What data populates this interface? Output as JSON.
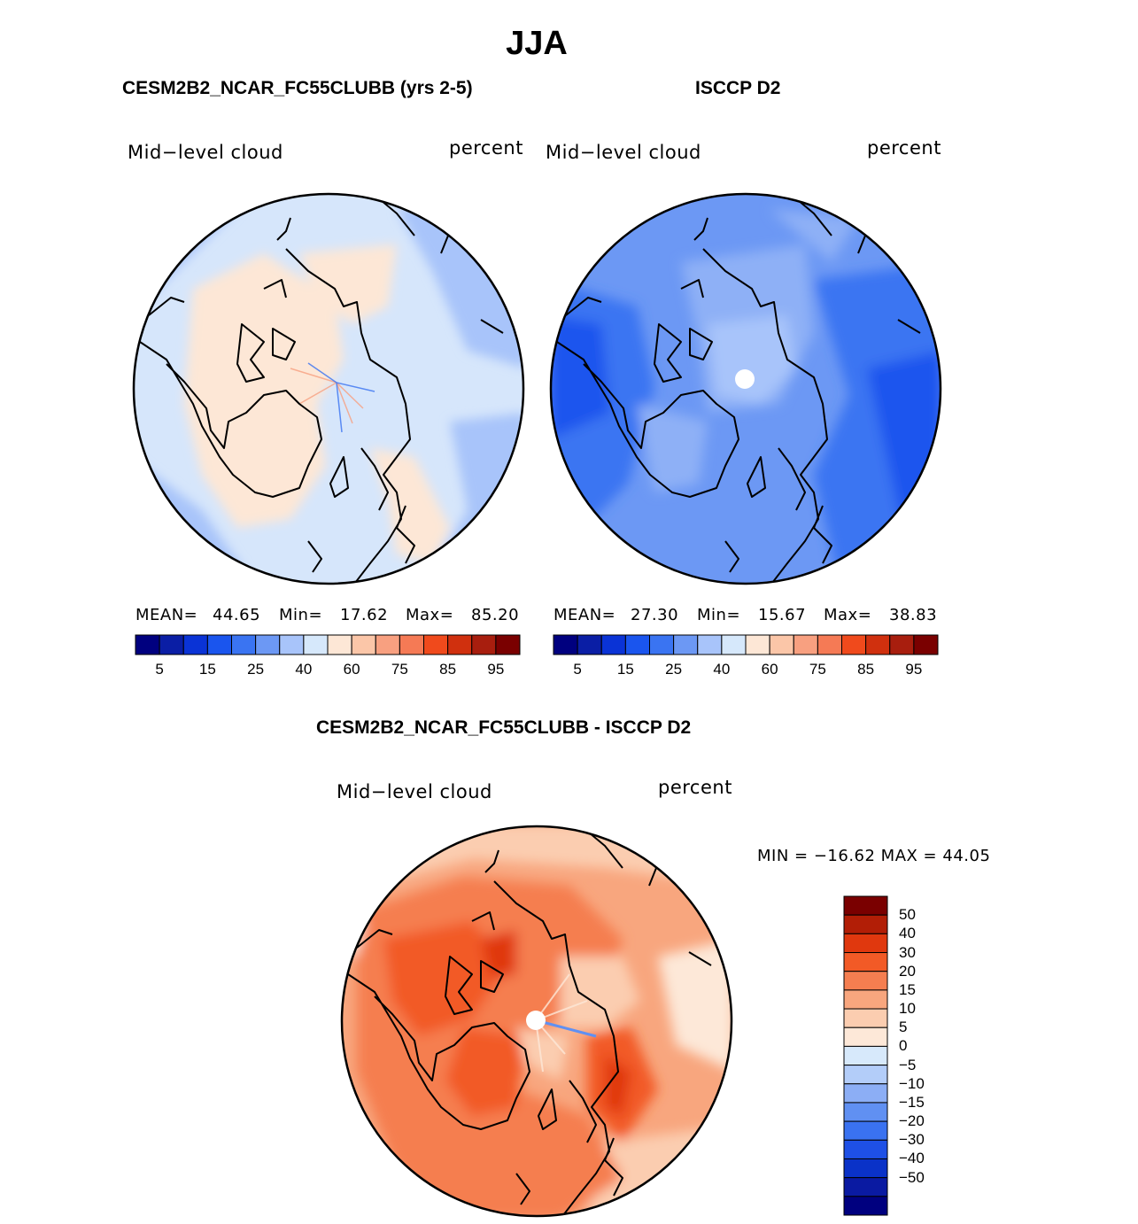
{
  "figure": {
    "season": "JJA"
  },
  "panels": {
    "model": {
      "title": "CESM2B2_NCAR_FC55CLUBB (yrs 2-5)",
      "variable": "Mid−level cloud",
      "units": "percent",
      "mean_label": "MEAN=",
      "mean": "44.65",
      "min_label": "Min=",
      "min": "17.62",
      "max_label": "Max=",
      "max": "85.20"
    },
    "obs": {
      "title": "ISCCP D2",
      "variable": "Mid−level cloud",
      "units": "percent",
      "mean_label": "MEAN=",
      "mean": "27.30",
      "min_label": "Min=",
      "min": "15.67",
      "max_label": "Max=",
      "max": "38.83"
    },
    "diff": {
      "title": "CESM2B2_NCAR_FC55CLUBB - ISCCP D2",
      "variable": "Mid−level cloud",
      "units": "percent",
      "minmax": "MIN = −16.62 MAX =  44.05"
    }
  },
  "colorbars": {
    "absolute": {
      "colors": [
        "#00007f",
        "#0a1ea5",
        "#0a33d6",
        "#1a55ee",
        "#3a74f2",
        "#6c98f4",
        "#a8c4fa",
        "#d6e8fb",
        "#fde7d6",
        "#fbc6a8",
        "#f8a080",
        "#f57a55",
        "#f04a1c",
        "#d0300e",
        "#a81e0e",
        "#7a0000"
      ],
      "tick_labels": [
        "5",
        "15",
        "25",
        "40",
        "60",
        "75",
        "85",
        "95"
      ]
    },
    "difference": {
      "colors": [
        "#7a0000",
        "#b21e06",
        "#e0380e",
        "#f25a26",
        "#f57e50",
        "#f8a67e",
        "#fbcdb0",
        "#fde8d8",
        "#d7e9fb",
        "#b3cdf9",
        "#8caef5",
        "#6090f2",
        "#3a72f0",
        "#1e50e6",
        "#0a32c8",
        "#0a1aa2",
        "#00007f"
      ],
      "tick_labels": [
        "50",
        "40",
        "30",
        "20",
        "15",
        "10",
        "5",
        "0",
        "−5",
        "−10",
        "−15",
        "−20",
        "−30",
        "−40",
        "−50"
      ]
    }
  }
}
